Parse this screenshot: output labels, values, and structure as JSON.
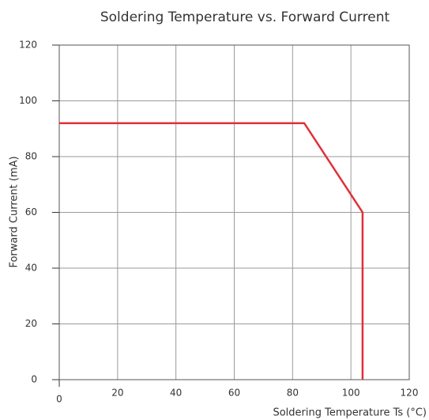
{
  "chart_data": {
    "type": "line",
    "title": "Soldering Temperature vs. Forward Current",
    "x_label": "Soldering Temperature Ts (°C)",
    "y_label": "Forward Current (mA)",
    "x": [
      0,
      84,
      104,
      104
    ],
    "series": [
      {
        "color": "#e0303a",
        "values": [
          92,
          92,
          60,
          0
        ]
      }
    ],
    "xlim": [
      0,
      120
    ],
    "xticks": [
      0,
      20,
      40,
      60,
      80,
      100,
      120
    ],
    "ylim": [
      0,
      120
    ],
    "yticks": [
      0,
      20,
      40,
      60,
      80,
      100,
      120
    ],
    "grid": true
  }
}
